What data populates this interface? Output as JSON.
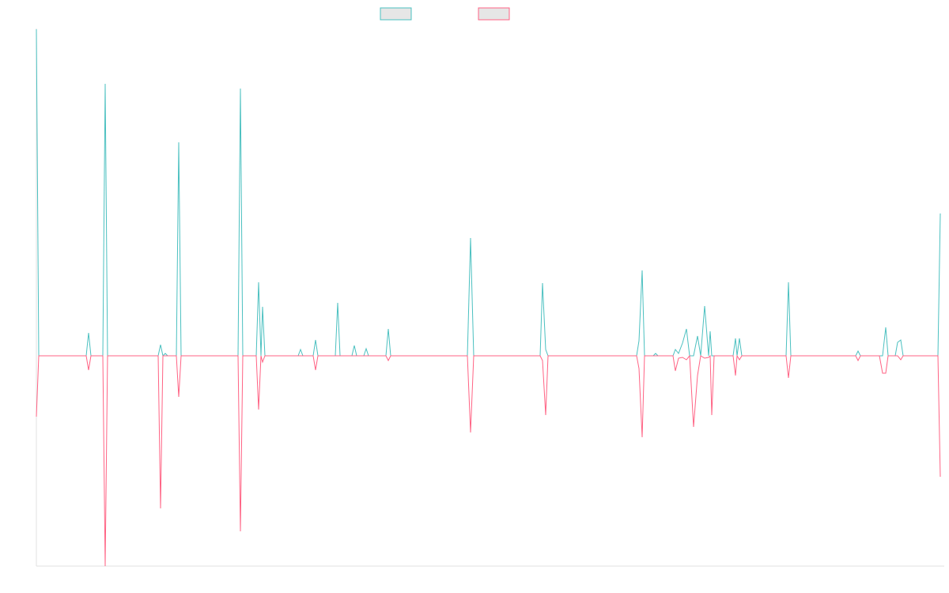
{
  "chart_data": {
    "type": "line",
    "x": [
      0,
      3,
      63,
      66,
      69,
      84,
      87,
      90,
      154,
      157,
      160,
      163,
      166,
      177,
      180,
      183,
      255,
      258,
      261,
      278,
      281,
      284,
      286,
      289,
      331,
      334,
      337,
      350,
      353,
      356,
      378,
      381,
      384,
      399,
      402,
      405,
      414,
      417,
      420,
      442,
      445,
      448,
      545,
      549,
      553,
      637,
      640,
      644,
      647,
      759,
      762,
      766,
      769,
      780,
      783,
      786,
      805,
      808,
      812,
      817,
      822,
      826,
      831,
      836,
      840,
      845,
      850,
      852,
      854,
      857,
      881,
      884,
      886,
      889,
      892,
      948,
      951,
      954,
      1036,
      1039,
      1042,
      1066,
      1070,
      1074,
      1077,
      1086,
      1089,
      1093,
      1096,
      1140,
      1143
    ],
    "series": [
      {
        "color": "#4bc0c0",
        "values": [
          413,
          0,
          0,
          29,
          0,
          0,
          344,
          0,
          0,
          14,
          0,
          3,
          0,
          0,
          270,
          0,
          0,
          338,
          0,
          0,
          93,
          0,
          62,
          0,
          0,
          8,
          0,
          0,
          20,
          0,
          0,
          67,
          0,
          0,
          13,
          0,
          0,
          9,
          0,
          0,
          34,
          0,
          0,
          149,
          0,
          0,
          92,
          8,
          0,
          0,
          19,
          108,
          0,
          0,
          3,
          0,
          0,
          8,
          3,
          16,
          34,
          0,
          0,
          25,
          0,
          63,
          0,
          31,
          0,
          0,
          0,
          22,
          0,
          22,
          0,
          0,
          93,
          0,
          0,
          6,
          0,
          0,
          0,
          36,
          0,
          0,
          17,
          20,
          0,
          0,
          180
        ]
      },
      {
        "color": "#ff6384",
        "values": [
          -77,
          0,
          0,
          -18,
          0,
          0,
          -266,
          0,
          0,
          -193,
          0,
          0,
          0,
          0,
          -52,
          0,
          0,
          -222,
          0,
          0,
          -68,
          0,
          -8,
          0,
          0,
          0,
          0,
          0,
          -18,
          0,
          0,
          0,
          0,
          0,
          0,
          0,
          0,
          0,
          0,
          0,
          -6,
          0,
          0,
          -97,
          0,
          0,
          -6,
          -75,
          0,
          0,
          -16,
          -103,
          0,
          0,
          0,
          0,
          0,
          -19,
          -3,
          -2,
          -5,
          0,
          -90,
          -25,
          0,
          -3,
          -2,
          0,
          -75,
          0,
          0,
          -25,
          0,
          -5,
          0,
          0,
          -28,
          0,
          0,
          -6,
          0,
          0,
          -22,
          -22,
          0,
          0,
          0,
          -5,
          0,
          0,
          -153
        ]
      }
    ],
    "xlim": [
      0,
      1148
    ],
    "ylim": [
      -266,
      414
    ]
  }
}
